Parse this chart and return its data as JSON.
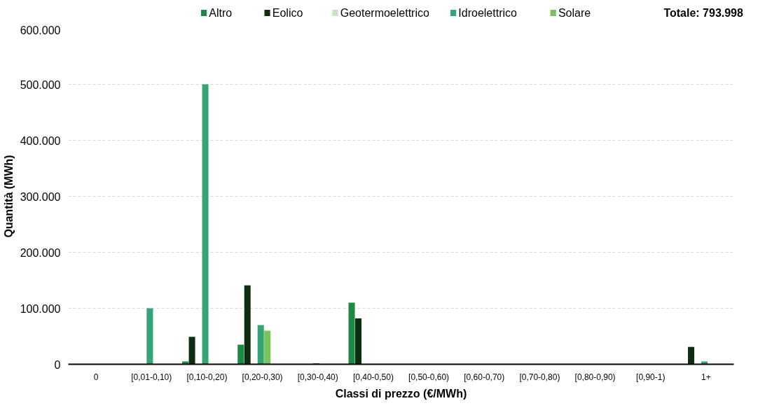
{
  "chart_data": {
    "type": "bar",
    "xlabel": "Classi di prezzo (€/MWh)",
    "ylabel": "Quantità (MWh)",
    "categories": [
      "0",
      "[0,01-0,10)",
      "[0,10-0,20)",
      "[0,20-0,30)",
      "[0,30-0,40)",
      "[0,40-0,50)",
      "[0,50-0,60)",
      "[0,60-0,70)",
      "[0,70-0,80)",
      "[0,80-0,90)",
      "[0,90-1)",
      "1+"
    ],
    "series": [
      {
        "name": "Altro",
        "color": "#1a8a45",
        "values": [
          0,
          0,
          5000,
          35000,
          0,
          110000,
          0,
          0,
          0,
          0,
          0,
          0
        ]
      },
      {
        "name": "Eolico",
        "color": "#0e2e12",
        "values": [
          0,
          0,
          49000,
          141000,
          0,
          82000,
          0,
          0,
          0,
          0,
          0,
          31000
        ]
      },
      {
        "name": "Geotermoelettrico",
        "color": "#c5e5c0",
        "values": [
          0,
          0,
          0,
          0,
          0,
          0,
          0,
          0,
          0,
          0,
          0,
          0
        ]
      },
      {
        "name": "Idroelettrico",
        "color": "#33a474",
        "values": [
          0,
          100000,
          500000,
          70000,
          2000,
          0,
          0,
          0,
          0,
          0,
          0,
          5000
        ]
      },
      {
        "name": "Solare",
        "color": "#7ac35c",
        "values": [
          0,
          0,
          0,
          60000,
          0,
          0,
          0,
          0,
          0,
          0,
          0,
          0
        ]
      }
    ],
    "ylim": [
      0,
      600000
    ],
    "yticks": [
      0,
      {
        "value": 100000,
        "label": "100.000"
      },
      {
        "value": 200000,
        "label": "200.000"
      },
      {
        "value": 300000,
        "label": "300.000"
      },
      {
        "value": 400000,
        "label": "400.000"
      },
      {
        "value": 500000,
        "label": "500.000"
      },
      {
        "value": 600000,
        "label": "600.000"
      }
    ],
    "grid": "y",
    "legend": "top",
    "annotations": [
      "Totale:  793.998"
    ]
  }
}
